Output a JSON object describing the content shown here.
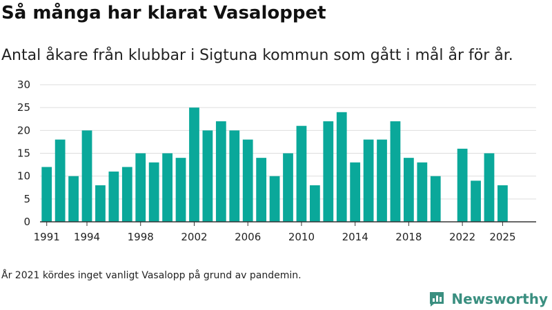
{
  "title": "Så många har klarat Vasaloppet",
  "subtitle": "Antal åkare från klubbar i Sigtuna kommun som gått i mål år för år.",
  "note": "År 2021 kördes inget vanligt Vasalopp på grund av pandemin.",
  "brand": {
    "name": "Newsworthy",
    "icon": "newsworthy-logo-icon"
  },
  "colors": {
    "bar": "#0aa89a",
    "grid": "#dddddd",
    "axis": "#333333",
    "brand": "#3a8f80"
  },
  "chart_data": {
    "type": "bar",
    "x": [
      1991,
      1992,
      1993,
      1994,
      1995,
      1996,
      1997,
      1998,
      1999,
      2000,
      2001,
      2002,
      2003,
      2004,
      2005,
      2006,
      2007,
      2008,
      2009,
      2010,
      2011,
      2012,
      2013,
      2014,
      2015,
      2016,
      2017,
      2018,
      2019,
      2020,
      2021,
      2022,
      2023,
      2024,
      2025
    ],
    "values": [
      12,
      18,
      10,
      20,
      8,
      11,
      12,
      15,
      13,
      15,
      14,
      25,
      20,
      22,
      20,
      18,
      14,
      10,
      15,
      21,
      8,
      22,
      24,
      13,
      18,
      18,
      22,
      14,
      13,
      10,
      0,
      16,
      9,
      15,
      8
    ],
    "x_tick_labels": [
      "1991",
      "1994",
      "1998",
      "2002",
      "2006",
      "2010",
      "2014",
      "2018",
      "2022",
      "2025"
    ],
    "y_ticks": [
      0,
      5,
      10,
      15,
      20,
      25,
      30
    ],
    "ylim": [
      0,
      30
    ],
    "grid": true,
    "legend": "none"
  }
}
